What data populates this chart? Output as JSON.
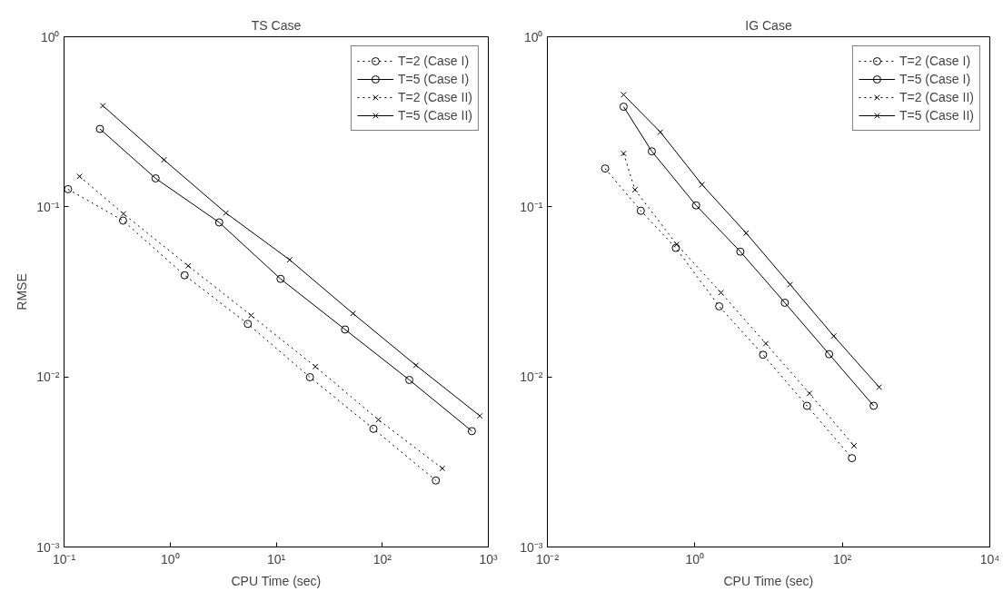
{
  "chart_data": [
    {
      "type": "line",
      "title": "TS Case",
      "xlabel": "CPU Time (sec)",
      "ylabel": "RMSE",
      "log": "xy",
      "grid": false,
      "legend": "top right",
      "xlim": [
        0.1,
        1000
      ],
      "xticks": [
        {
          "value": 0.1,
          "label": "10⁻¹"
        },
        {
          "value": 1,
          "label": "10⁰"
        },
        {
          "value": 10,
          "label": "10¹"
        },
        {
          "value": 100,
          "label": "10²"
        },
        {
          "value": 1000,
          "label": "10³"
        }
      ],
      "ylim": [
        0.001,
        1
      ],
      "yticks": [
        {
          "value": 0.001,
          "label": "10⁻³"
        },
        {
          "value": 0.01,
          "label": "10⁻²"
        },
        {
          "value": 0.1,
          "label": "10⁻¹"
        },
        {
          "value": 1,
          "label": "10⁰"
        }
      ],
      "series": [
        {
          "name": "T=2 (Case I)",
          "color": "#000000",
          "marker": "circle",
          "line_style": "dotted",
          "x": [
            0.109,
            0.36,
            1.37,
            5.4,
            20.8,
            82.6,
            320
          ],
          "values": [
            0.127,
            0.083,
            0.0396,
            0.0205,
            0.00996,
            0.00495,
            0.00246
          ]
        },
        {
          "name": "T=5 (Case I)",
          "color": "#000000",
          "marker": "circle",
          "line_style": "solid",
          "x": [
            0.218,
            0.73,
            2.9,
            11.0,
            44.6,
            180,
            700
          ],
          "values": [
            0.287,
            0.147,
            0.081,
            0.0377,
            0.019,
            0.0096,
            0.0048
          ]
        },
        {
          "name": "T=2 (Case II)",
          "color": "#000000",
          "marker": "cross",
          "line_style": "dotted",
          "x": [
            0.14,
            0.363,
            1.48,
            5.8,
            23.4,
            92,
            368
          ],
          "values": [
            0.151,
            0.091,
            0.045,
            0.023,
            0.0115,
            0.0056,
            0.0029
          ]
        },
        {
          "name": "T=5 (Case II)",
          "color": "#000000",
          "marker": "cross",
          "line_style": "solid",
          "x": [
            0.232,
            0.875,
            3.36,
            13.4,
            53,
            208,
            832
          ],
          "values": [
            0.393,
            0.189,
            0.092,
            0.0488,
            0.0236,
            0.0117,
            0.0059
          ]
        }
      ]
    },
    {
      "type": "line",
      "title": "IG Case",
      "xlabel": "CPU Time (sec)",
      "log": "xy",
      "grid": false,
      "legend": "top right",
      "xlim": [
        0.01,
        10000
      ],
      "xticks": [
        {
          "value": 0.01,
          "label": "10⁻²"
        },
        {
          "value": 1,
          "label": "10⁰"
        },
        {
          "value": 100,
          "label": "10²"
        },
        {
          "value": 10000,
          "label": "10⁴"
        }
      ],
      "ylim": [
        0.001,
        1
      ],
      "yticks": [
        {
          "value": 0.001,
          "label": "10⁻³"
        },
        {
          "value": 0.01,
          "label": "10⁻²"
        },
        {
          "value": 0.1,
          "label": "10⁻¹"
        },
        {
          "value": 1,
          "label": "10⁰"
        }
      ],
      "series": [
        {
          "name": "T=2 (Case I)",
          "color": "#000000",
          "marker": "circle",
          "line_style": "dotted",
          "x": [
            0.0607,
            0.185,
            0.552,
            2.14,
            8.41,
            33.2,
            135
          ],
          "values": [
            0.168,
            0.0948,
            0.0573,
            0.026,
            0.0135,
            0.00676,
            0.00333
          ]
        },
        {
          "name": "T=5 (Case I)",
          "color": "#000000",
          "marker": "circle",
          "line_style": "solid",
          "x": [
            0.108,
            0.261,
            1.04,
            4.14,
            16.6,
            66.2,
            266
          ],
          "values": [
            0.388,
            0.212,
            0.102,
            0.0545,
            0.0273,
            0.0136,
            0.00676
          ]
        },
        {
          "name": "T=2 (Case II)",
          "color": "#000000",
          "marker": "cross",
          "line_style": "dotted",
          "x": [
            0.108,
            0.154,
            0.568,
            2.26,
            9.17,
            35.8,
            144
          ],
          "values": [
            0.206,
            0.126,
            0.0601,
            0.0313,
            0.0157,
            0.008,
            0.00394
          ]
        },
        {
          "name": "T=5 (Case II)",
          "color": "#000000",
          "marker": "cross",
          "line_style": "solid",
          "x": [
            0.108,
            0.341,
            1.25,
            4.96,
            19.6,
            76.4,
            316
          ],
          "values": [
            0.456,
            0.275,
            0.135,
            0.0701,
            0.0349,
            0.0174,
            0.0087
          ]
        }
      ]
    }
  ]
}
